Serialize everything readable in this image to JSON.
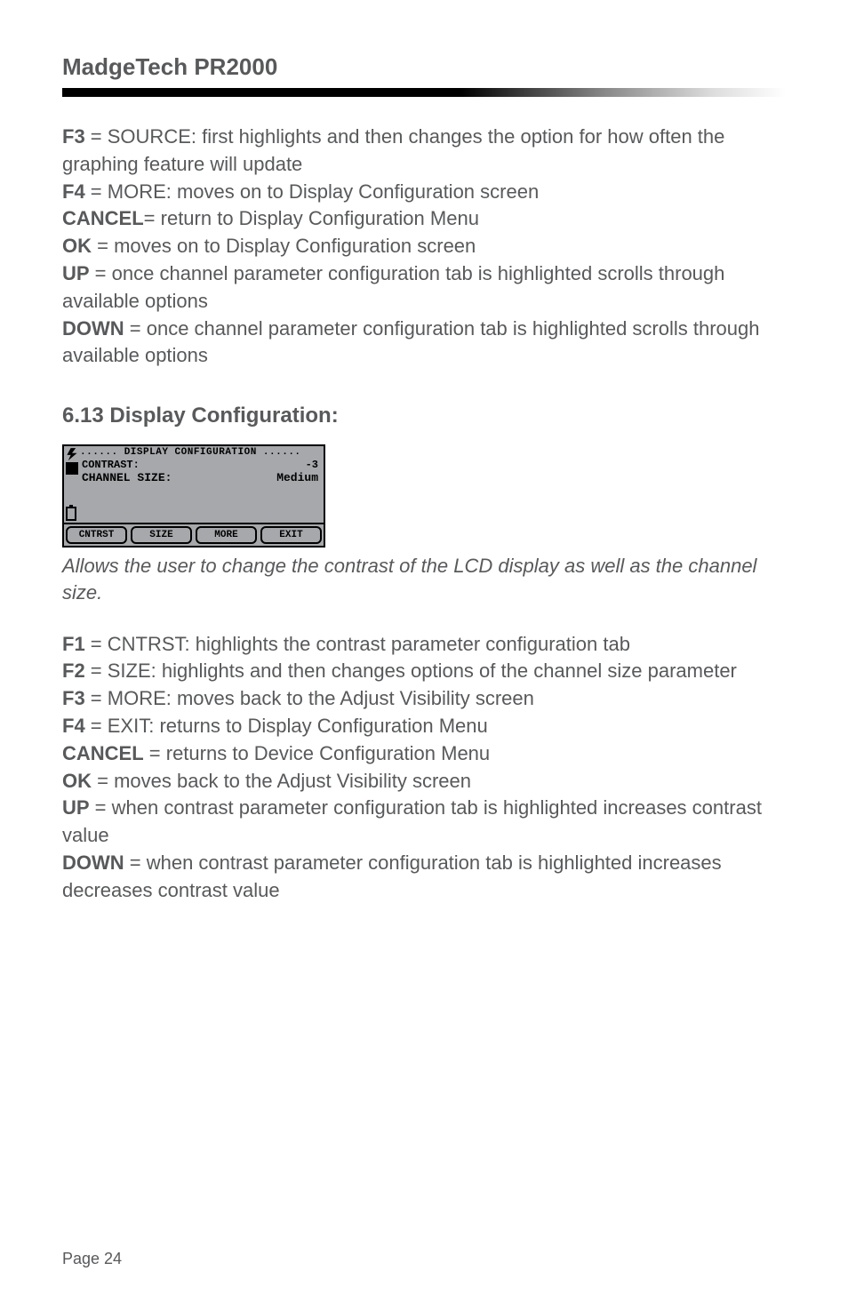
{
  "header": {
    "title": "MadgeTech  PR2000"
  },
  "block1": {
    "lines": [
      {
        "key": "F3",
        "rest": " = SOURCE: first highlights and then changes the option for how often the graphing feature will update"
      },
      {
        "key": "F4",
        "rest": " = MORE: moves on to Display Configuration screen"
      },
      {
        "key": "CANCEL",
        "rest": "= return to Display Configuration Menu"
      },
      {
        "key": "OK",
        "rest": " = moves on to Display Configuration screen"
      },
      {
        "key": "UP",
        "rest": " = once channel parameter configuration tab is highlighted scrolls through available options"
      },
      {
        "key": "DOWN",
        "rest": " = once channel parameter configuration tab is highlighted scrolls through available options"
      }
    ]
  },
  "section": {
    "title": "6.13 Display Configuration:"
  },
  "lcd": {
    "title": "...... DISPLAY CONFIGURATION ......",
    "row1_label": "CONTRAST:",
    "row1_value": "-3",
    "row2_label": "CHANNEL SIZE:",
    "row2_value": "Medium",
    "buttons": [
      "CNTRST",
      "SIZE",
      "MORE",
      "EXIT"
    ]
  },
  "caption": "Allows the user to change the contrast of the LCD display as well as the channel size.",
  "block2": {
    "lines": [
      {
        "key": "F1",
        "rest": " = CNTRST: highlights the contrast parameter configuration tab"
      },
      {
        "key": "F2",
        "rest": " = SIZE: highlights and then changes options of the channel size parameter"
      },
      {
        "key": "F3",
        "rest": " = MORE: moves back to the Adjust Visibility screen"
      },
      {
        "key": "F4",
        "rest": " = EXIT: returns to Display Configuration Menu"
      },
      {
        "key": "CANCEL",
        "rest": " = returns to Device Configuration Menu"
      },
      {
        "key": "OK",
        "rest": " = moves back to the Adjust Visibility screen"
      },
      {
        "key": "UP",
        "rest": " = when contrast parameter configuration tab is highlighted increases contrast value"
      },
      {
        "key": "DOWN",
        "rest": " = when contrast parameter configuration tab is highlighted increases decreases contrast value"
      }
    ]
  },
  "footer": {
    "page": "Page 24"
  }
}
